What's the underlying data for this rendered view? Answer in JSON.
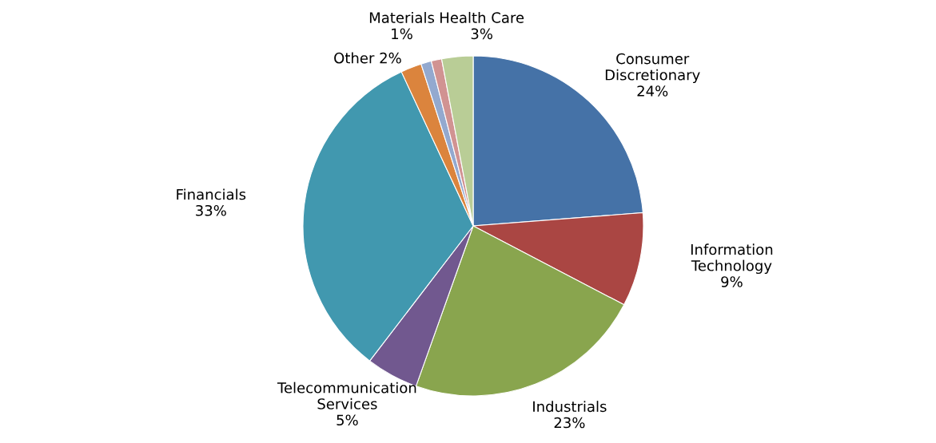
{
  "chart_data": {
    "type": "pie",
    "categories": [
      "Consumer Discretionary",
      "Information Technology",
      "Industrials",
      "Telecommunication Services",
      "Financials",
      "Other",
      "Materials",
      null,
      "Health Care"
    ],
    "values": [
      24,
      9,
      23,
      5,
      33,
      2,
      1,
      1,
      3
    ],
    "value_labels": [
      "24%",
      "9%",
      "23%",
      "5%",
      "33%",
      "2%",
      "1%",
      null,
      "3%"
    ],
    "colors": [
      "#4572a7",
      "#aa4643",
      "#89a54e",
      "#71588f",
      "#4198af",
      "#db843d",
      "#93a9cf",
      "#d19392",
      "#b9cd96"
    ],
    "legend": false
  }
}
